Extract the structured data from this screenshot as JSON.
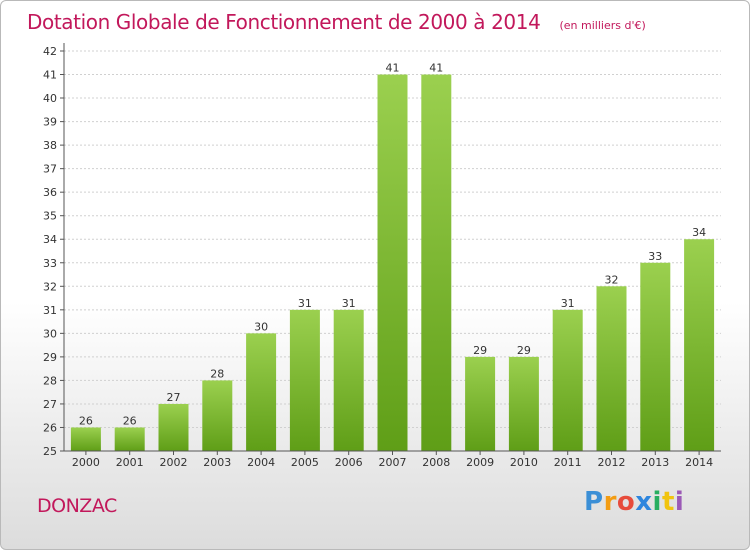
{
  "header": {
    "title": "Dotation Globale de Fonctionnement de 2000 à 2014",
    "subtitle": "(en milliers d'€)"
  },
  "footer": {
    "town": "DONZAC",
    "logo_text": "Proxiti",
    "logo_colors": [
      "#3b8fd6",
      "#f39c12",
      "#e74c3c",
      "#2e86de",
      "#27ae60",
      "#f1c40f",
      "#9b59b6"
    ]
  },
  "colors": {
    "bar_top": "#9bd04f",
    "bar_bottom": "#5f9e17",
    "grid": "#d0d0d0",
    "title": "#c2185b"
  },
  "chart_data": {
    "type": "bar",
    "categories": [
      "2000",
      "2001",
      "2002",
      "2003",
      "2004",
      "2005",
      "2006",
      "2007",
      "2008",
      "2009",
      "2010",
      "2011",
      "2012",
      "2013",
      "2014"
    ],
    "values": [
      26,
      26,
      27,
      28,
      30,
      31,
      31,
      41,
      41,
      29,
      29,
      31,
      32,
      33,
      34
    ],
    "title": "Dotation Globale de Fonctionnement de 2000 à 2014",
    "subtitle": "(en milliers d'€)",
    "xlabel": "",
    "ylabel": "",
    "ylim": [
      25,
      42
    ],
    "yticks": [
      25,
      26,
      27,
      28,
      29,
      30,
      31,
      32,
      33,
      34,
      35,
      36,
      37,
      38,
      39,
      40,
      41,
      42
    ],
    "grid": true,
    "data_labels": true
  }
}
